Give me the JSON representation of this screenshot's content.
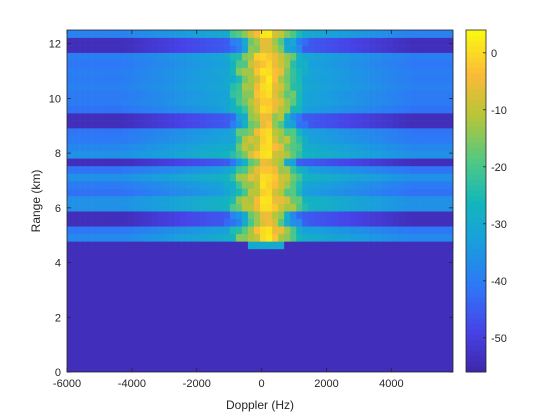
{
  "chart_data": {
    "type": "heatmap",
    "title": "",
    "xlabel": "Doppler (Hz)",
    "ylabel": "Range (km)",
    "xlim": [
      -6000,
      5900
    ],
    "ylim": [
      0,
      12.5
    ],
    "xticks": [
      -6000,
      -4000,
      -2000,
      0,
      2000,
      4000
    ],
    "xtick_labels": [
      "-6000",
      "-4000",
      "-2000",
      "0",
      "2000",
      "4000"
    ],
    "yticks": [
      0,
      2,
      4,
      6,
      8,
      10,
      12
    ],
    "ytick_labels": [
      "0",
      "2",
      "4",
      "6",
      "8",
      "10",
      "12"
    ],
    "colorbar": {
      "range": [
        -56,
        4
      ],
      "ticks": [
        0,
        -10,
        -20,
        -30,
        -40,
        -50
      ],
      "tick_labels": [
        "0",
        "-10",
        "-20",
        "-30",
        "-40",
        "-50"
      ],
      "colormap": "parula"
    },
    "grid": false,
    "description_values": {
      "noise_floor_below_km": 4.5,
      "noise_floor_level_db": -54,
      "clutter_ridge_center_hz": 150,
      "clutter_ridge_peak_db": 3,
      "range_cells_per_km": 3.6
    }
  }
}
